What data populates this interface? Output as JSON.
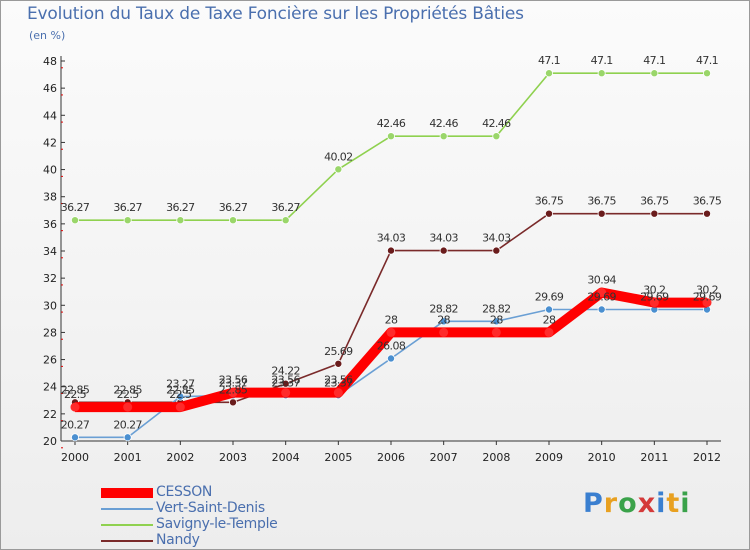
{
  "header": {
    "title": "Evolution du Taux de Taxe Foncière sur les Propriétés Bâties",
    "unit": "(en %)"
  },
  "chart_data": {
    "type": "line",
    "title": "Evolution du Taux de Taxe Foncière sur les Propriétés Bâties",
    "ylabel": "(en %)",
    "xlabel": "",
    "x": [
      "2000",
      "2001",
      "2002",
      "2003",
      "2004",
      "2005",
      "2006",
      "2007",
      "2008",
      "2009",
      "2010",
      "2011",
      "2012"
    ],
    "ylim": [
      20,
      48
    ],
    "yticks": [
      20,
      22,
      24,
      26,
      28,
      30,
      32,
      34,
      36,
      38,
      40,
      42,
      44,
      46,
      48
    ],
    "grid": false,
    "legend_position": "bottom-left",
    "series": [
      {
        "name": "CESSON",
        "color": "#ff0000",
        "values": [
          22.5,
          22.5,
          22.5,
          23.56,
          23.56,
          23.56,
          28,
          28,
          28,
          28,
          30.94,
          30.2,
          30.2
        ],
        "labels": [
          "22.5",
          "22.5",
          "22.5",
          "23.56",
          "23.56",
          "23.56",
          "28",
          "28",
          "28",
          "28",
          "30.94",
          "30.2",
          "30.2"
        ]
      },
      {
        "name": "Vert-Saint-Denis",
        "color": "#6a9fd4",
        "values": [
          20.27,
          20.27,
          23.27,
          23.37,
          23.37,
          23.37,
          26.08,
          28.82,
          28.82,
          29.69,
          29.69,
          29.69,
          29.69
        ],
        "labels": [
          "20.27",
          "20.27",
          "23.27",
          "23.37",
          "23.37",
          "23.37",
          "26.08",
          "28.82",
          "28.82",
          "29.69",
          "29.69",
          "29.69",
          "29.69"
        ]
      },
      {
        "name": "Savigny-le-Temple",
        "color": "#8fd14f",
        "values": [
          36.27,
          36.27,
          36.27,
          36.27,
          36.27,
          40.02,
          42.46,
          42.46,
          42.46,
          47.1,
          47.1,
          47.1,
          47.1
        ],
        "labels": [
          "36.27",
          "36.27",
          "36.27",
          "36.27",
          "36.27",
          "40.02",
          "42.46",
          "42.46",
          "42.46",
          "47.1",
          "47.1",
          "47.1",
          "47.1"
        ]
      },
      {
        "name": "Nandy",
        "color": "#7a2a2a",
        "values": [
          22.85,
          22.85,
          22.85,
          22.85,
          24.22,
          25.69,
          34.03,
          34.03,
          34.03,
          36.75,
          36.75,
          36.75,
          36.75
        ],
        "labels": [
          "22.85",
          "22.85",
          "22.85",
          "22.85",
          "24.22",
          "25.69",
          "34.03",
          "34.03",
          "34.03",
          "36.75",
          "36.75",
          "36.75",
          "36.75"
        ]
      }
    ]
  },
  "legend": [
    {
      "label": "CESSON"
    },
    {
      "label": "Vert-Saint-Denis"
    },
    {
      "label": "Savigny-le-Temple"
    },
    {
      "label": "Nandy"
    }
  ],
  "brand": {
    "letters": [
      "P",
      "r",
      "o",
      "x",
      "i",
      "t",
      "i"
    ],
    "colors": [
      "#3a7fd0",
      "#e8a020",
      "#3aa24a",
      "#d43a3a",
      "#3a7fd0",
      "#e8a020",
      "#3aa24a"
    ]
  }
}
